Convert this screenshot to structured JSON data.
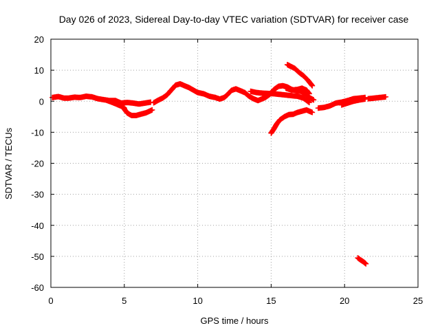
{
  "chart_data": {
    "type": "scatter",
    "title": "Day 026 of 2023, Sidereal Day-to-day VTEC variation (SDTVAR) for receiver case",
    "xlabel": "GPS time / hours",
    "ylabel": "SDTVAR / TECUs",
    "xlim": [
      0,
      25
    ],
    "ylim": [
      -60,
      20
    ],
    "xticks": [
      0,
      5,
      10,
      15,
      20,
      25
    ],
    "yticks": [
      20,
      10,
      0,
      -10,
      -20,
      -30,
      -40,
      -50,
      -60
    ],
    "grid": true,
    "marker_color": "#ff0000",
    "series": [
      {
        "name": "SDTVAR",
        "segments": [
          [
            [
              0.1,
              1.2
            ],
            [
              0.5,
              1.5
            ],
            [
              0.9,
              1.0
            ],
            [
              1.2,
              1.0
            ],
            [
              1.6,
              1.3
            ],
            [
              2.0,
              1.2
            ],
            [
              2.4,
              1.6
            ],
            [
              2.8,
              1.4
            ],
            [
              3.2,
              0.8
            ],
            [
              3.6,
              0.5
            ],
            [
              4.0,
              0.2
            ],
            [
              4.4,
              0.2
            ],
            [
              4.8,
              -0.6
            ],
            [
              5.2,
              -0.4
            ],
            [
              5.6,
              -0.6
            ],
            [
              6.0,
              -0.9
            ],
            [
              6.4,
              -0.6
            ],
            [
              6.8,
              -0.3
            ]
          ],
          [
            [
              3.8,
              0.3
            ],
            [
              4.2,
              -0.4
            ],
            [
              4.6,
              -1.2
            ],
            [
              4.9,
              -1.8
            ],
            [
              5.0,
              -2.2
            ]
          ],
          [
            [
              5.0,
              -2.5
            ],
            [
              5.2,
              -3.8
            ],
            [
              5.5,
              -4.6
            ],
            [
              5.8,
              -4.6
            ],
            [
              6.1,
              -4.2
            ],
            [
              6.5,
              -3.7
            ],
            [
              6.9,
              -2.8
            ]
          ],
          [
            [
              7.0,
              -0.5
            ],
            [
              7.3,
              0.3
            ],
            [
              7.6,
              1.0
            ],
            [
              7.9,
              2.0
            ],
            [
              8.2,
              3.6
            ],
            [
              8.5,
              5.2
            ],
            [
              8.8,
              5.6
            ],
            [
              9.1,
              5.0
            ],
            [
              9.4,
              4.4
            ],
            [
              9.7,
              3.6
            ],
            [
              10.0,
              2.8
            ],
            [
              10.4,
              2.4
            ],
            [
              10.8,
              1.6
            ],
            [
              11.2,
              1.2
            ],
            [
              11.5,
              0.7
            ],
            [
              11.8,
              1.2
            ],
            [
              12.0,
              2.0
            ],
            [
              12.3,
              3.5
            ],
            [
              12.6,
              4.0
            ],
            [
              12.9,
              3.4
            ],
            [
              13.2,
              2.8
            ],
            [
              13.5,
              1.6
            ],
            [
              13.8,
              0.8
            ],
            [
              14.1,
              0.2
            ],
            [
              14.3,
              0.6
            ],
            [
              14.6,
              1.2
            ],
            [
              14.9,
              2.2
            ],
            [
              15.2,
              3.8
            ],
            [
              15.5,
              4.8
            ],
            [
              15.8,
              5.0
            ],
            [
              16.1,
              4.6
            ],
            [
              16.4,
              3.8
            ],
            [
              16.7,
              3.4
            ],
            [
              17.0,
              3.2
            ],
            [
              17.3,
              2.4
            ],
            [
              17.6,
              1.2
            ],
            [
              17.9,
              0.4
            ]
          ],
          [
            [
              13.6,
              3.2
            ],
            [
              14.0,
              2.8
            ],
            [
              14.4,
              2.6
            ],
            [
              14.8,
              2.5
            ],
            [
              15.2,
              2.4
            ],
            [
              15.6,
              2.2
            ],
            [
              16.0,
              2.0
            ],
            [
              16.4,
              1.8
            ],
            [
              16.8,
              1.6
            ],
            [
              17.2,
              1.0
            ],
            [
              17.6,
              -0.4
            ]
          ],
          [
            [
              16.0,
              4.2
            ],
            [
              16.4,
              3.6
            ],
            [
              16.8,
              3.8
            ],
            [
              17.1,
              4.2
            ],
            [
              17.4,
              3.6
            ],
            [
              17.6,
              2.4
            ]
          ],
          [
            [
              16.1,
              11.8
            ],
            [
              16.3,
              11.3
            ],
            [
              16.6,
              10.6
            ],
            [
              16.9,
              9.3
            ],
            [
              17.2,
              8.2
            ],
            [
              17.5,
              6.8
            ],
            [
              17.8,
              5.0
            ]
          ],
          [
            [
              15.0,
              -10.3
            ],
            [
              15.2,
              -8.8
            ],
            [
              15.4,
              -7.2
            ],
            [
              15.6,
              -6.0
            ],
            [
              15.9,
              -5.0
            ],
            [
              16.2,
              -4.3
            ],
            [
              16.5,
              -4.2
            ],
            [
              16.8,
              -3.6
            ],
            [
              17.1,
              -3.2
            ],
            [
              17.4,
              -2.8
            ],
            [
              17.8,
              -3.6
            ]
          ],
          [
            [
              18.2,
              -2.2
            ],
            [
              18.6,
              -2.0
            ],
            [
              19.0,
              -1.5
            ],
            [
              19.4,
              -0.6
            ],
            [
              19.8,
              -0.3
            ],
            [
              20.2,
              0.2
            ],
            [
              20.6,
              0.8
            ],
            [
              21.0,
              1.0
            ],
            [
              21.4,
              1.2
            ]
          ],
          [
            [
              19.8,
              -1.2
            ],
            [
              20.2,
              -0.6
            ],
            [
              20.6,
              0.0
            ],
            [
              21.0,
              0.4
            ],
            [
              21.4,
              0.7
            ]
          ],
          [
            [
              21.6,
              0.8
            ],
            [
              22.0,
              1.0
            ],
            [
              22.4,
              1.2
            ],
            [
              22.8,
              1.4
            ]
          ],
          [
            [
              20.9,
              -50.5
            ],
            [
              21.1,
              -51.2
            ],
            [
              21.3,
              -51.8
            ],
            [
              21.45,
              -52.4
            ]
          ]
        ]
      }
    ]
  }
}
